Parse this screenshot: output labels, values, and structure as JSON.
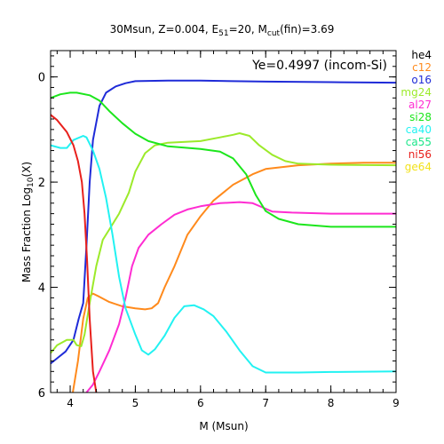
{
  "chart_data": {
    "type": "line",
    "title": "30Msun, Z=0.004, E",
    "title_sub": "51",
    "title_mid": "=20, M",
    "title_sub2": "cut",
    "title_end": "(fin)=3.69",
    "annotation": "Ye=0.4997 (incom-Si)",
    "xlabel": "M (Msun)",
    "ylabel_pre": "Mass Fraction Log",
    "ylabel_sub": "10",
    "ylabel_post": "(X)",
    "xlim": [
      3.7,
      9.0
    ],
    "ylim": [
      -6.0,
      0.5
    ],
    "x_ticks": [
      4,
      5,
      6,
      7,
      8,
      9
    ],
    "y_ticks": [
      0,
      -2,
      -4,
      -6
    ],
    "y_tick_labels": [
      "0",
      "2",
      "4",
      "6"
    ],
    "grid": false,
    "legend_position": "right-outside",
    "series": [
      {
        "name": "he4",
        "color": "#000000",
        "points": []
      },
      {
        "name": "c12",
        "color": "#ff8a1c",
        "points": [
          [
            4.04,
            -6.0
          ],
          [
            4.12,
            -5.4
          ],
          [
            4.2,
            -4.6
          ],
          [
            4.27,
            -4.2
          ],
          [
            4.35,
            -4.12
          ],
          [
            4.45,
            -4.18
          ],
          [
            4.6,
            -4.28
          ],
          [
            4.8,
            -4.36
          ],
          [
            5.0,
            -4.4
          ],
          [
            5.15,
            -4.42
          ],
          [
            5.25,
            -4.4
          ],
          [
            5.35,
            -4.3
          ],
          [
            5.45,
            -4.0
          ],
          [
            5.6,
            -3.6
          ],
          [
            5.8,
            -3.0
          ],
          [
            6.0,
            -2.65
          ],
          [
            6.2,
            -2.35
          ],
          [
            6.5,
            -2.05
          ],
          [
            6.8,
            -1.85
          ],
          [
            7.0,
            -1.75
          ],
          [
            7.5,
            -1.68
          ],
          [
            8.0,
            -1.65
          ],
          [
            8.5,
            -1.63
          ],
          [
            9.0,
            -1.63
          ]
        ]
      },
      {
        "name": "o16",
        "color": "#1f2bd8",
        "points": [
          [
            3.7,
            -5.45
          ],
          [
            3.8,
            -5.35
          ],
          [
            3.93,
            -5.22
          ],
          [
            4.05,
            -5.0
          ],
          [
            4.13,
            -4.6
          ],
          [
            4.2,
            -4.3
          ],
          [
            4.25,
            -3.2
          ],
          [
            4.3,
            -2.0
          ],
          [
            4.35,
            -1.2
          ],
          [
            4.45,
            -0.55
          ],
          [
            4.55,
            -0.3
          ],
          [
            4.7,
            -0.18
          ],
          [
            4.85,
            -0.12
          ],
          [
            5.0,
            -0.08
          ],
          [
            5.5,
            -0.07
          ],
          [
            6.0,
            -0.07
          ],
          [
            6.5,
            -0.08
          ],
          [
            7.0,
            -0.09
          ],
          [
            8.0,
            -0.1
          ],
          [
            9.0,
            -0.11
          ]
        ]
      },
      {
        "name": "mg24",
        "color": "#9cea2a",
        "points": [
          [
            3.7,
            -5.25
          ],
          [
            3.8,
            -5.1
          ],
          [
            3.95,
            -5.0
          ],
          [
            4.05,
            -5.0
          ],
          [
            4.1,
            -5.1
          ],
          [
            4.17,
            -5.12
          ],
          [
            4.22,
            -4.9
          ],
          [
            4.3,
            -4.3
          ],
          [
            4.4,
            -3.6
          ],
          [
            4.5,
            -3.1
          ],
          [
            4.6,
            -2.9
          ],
          [
            4.75,
            -2.6
          ],
          [
            4.9,
            -2.2
          ],
          [
            5.0,
            -1.8
          ],
          [
            5.15,
            -1.45
          ],
          [
            5.3,
            -1.3
          ],
          [
            5.5,
            -1.25
          ],
          [
            6.0,
            -1.22
          ],
          [
            6.3,
            -1.15
          ],
          [
            6.5,
            -1.1
          ],
          [
            6.6,
            -1.07
          ],
          [
            6.75,
            -1.12
          ],
          [
            6.9,
            -1.3
          ],
          [
            7.1,
            -1.48
          ],
          [
            7.3,
            -1.6
          ],
          [
            7.5,
            -1.65
          ],
          [
            8.0,
            -1.67
          ],
          [
            9.0,
            -1.68
          ]
        ]
      },
      {
        "name": "al27",
        "color": "#ff2cd2",
        "points": [
          [
            4.25,
            -6.0
          ],
          [
            4.35,
            -5.85
          ],
          [
            4.45,
            -5.6
          ],
          [
            4.6,
            -5.2
          ],
          [
            4.75,
            -4.7
          ],
          [
            4.85,
            -4.2
          ],
          [
            4.95,
            -3.6
          ],
          [
            5.05,
            -3.25
          ],
          [
            5.2,
            -3.0
          ],
          [
            5.4,
            -2.8
          ],
          [
            5.6,
            -2.62
          ],
          [
            5.8,
            -2.52
          ],
          [
            6.0,
            -2.46
          ],
          [
            6.3,
            -2.4
          ],
          [
            6.6,
            -2.38
          ],
          [
            6.8,
            -2.4
          ],
          [
            6.95,
            -2.48
          ],
          [
            7.1,
            -2.56
          ],
          [
            7.4,
            -2.58
          ],
          [
            8.0,
            -2.6
          ],
          [
            9.0,
            -2.6
          ]
        ]
      },
      {
        "name": "si28",
        "color": "#1ce61c",
        "points": [
          [
            3.7,
            -0.4
          ],
          [
            3.85,
            -0.33
          ],
          [
            4.0,
            -0.3
          ],
          [
            4.1,
            -0.3
          ],
          [
            4.3,
            -0.35
          ],
          [
            4.45,
            -0.45
          ],
          [
            4.6,
            -0.65
          ],
          [
            4.8,
            -0.88
          ],
          [
            5.0,
            -1.08
          ],
          [
            5.2,
            -1.22
          ],
          [
            5.5,
            -1.32
          ],
          [
            6.0,
            -1.37
          ],
          [
            6.3,
            -1.42
          ],
          [
            6.5,
            -1.55
          ],
          [
            6.7,
            -1.85
          ],
          [
            6.85,
            -2.25
          ],
          [
            7.0,
            -2.55
          ],
          [
            7.2,
            -2.7
          ],
          [
            7.5,
            -2.8
          ],
          [
            8.0,
            -2.85
          ],
          [
            9.0,
            -2.85
          ]
        ]
      },
      {
        "name": "ca40",
        "color": "#22f2f2",
        "points": [
          [
            3.7,
            -1.3
          ],
          [
            3.85,
            -1.35
          ],
          [
            3.95,
            -1.35
          ],
          [
            4.05,
            -1.2
          ],
          [
            4.2,
            -1.12
          ],
          [
            4.25,
            -1.15
          ],
          [
            4.35,
            -1.4
          ],
          [
            4.45,
            -1.75
          ],
          [
            4.55,
            -2.3
          ],
          [
            4.65,
            -3.0
          ],
          [
            4.75,
            -3.8
          ],
          [
            4.85,
            -4.4
          ],
          [
            5.0,
            -4.9
          ],
          [
            5.1,
            -5.2
          ],
          [
            5.2,
            -5.28
          ],
          [
            5.3,
            -5.18
          ],
          [
            5.45,
            -4.92
          ],
          [
            5.6,
            -4.58
          ],
          [
            5.75,
            -4.36
          ],
          [
            5.9,
            -4.34
          ],
          [
            6.05,
            -4.42
          ],
          [
            6.2,
            -4.55
          ],
          [
            6.4,
            -4.85
          ],
          [
            6.6,
            -5.2
          ],
          [
            6.8,
            -5.5
          ],
          [
            7.0,
            -5.62
          ],
          [
            7.5,
            -5.62
          ],
          [
            8.0,
            -5.61
          ],
          [
            9.0,
            -5.6
          ]
        ]
      },
      {
        "name": "ca55",
        "color": "#1ce68a",
        "points": []
      },
      {
        "name": "ni56",
        "color": "#e8201c",
        "points": [
          [
            3.7,
            -0.72
          ],
          [
            3.8,
            -0.82
          ],
          [
            3.95,
            -1.05
          ],
          [
            4.05,
            -1.3
          ],
          [
            4.12,
            -1.6
          ],
          [
            4.18,
            -2.0
          ],
          [
            4.22,
            -2.6
          ],
          [
            4.26,
            -3.5
          ],
          [
            4.3,
            -4.6
          ],
          [
            4.35,
            -5.6
          ],
          [
            4.4,
            -6.0
          ]
        ]
      },
      {
        "name": "ge64",
        "color": "#f2e21c",
        "points": []
      }
    ]
  }
}
